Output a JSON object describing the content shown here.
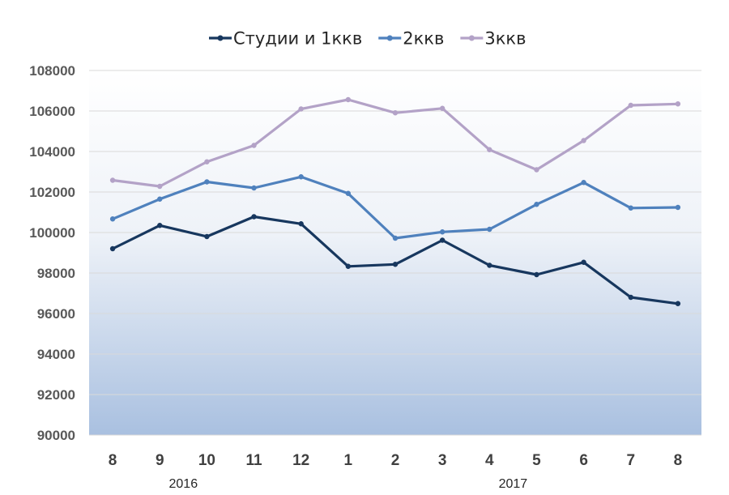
{
  "chart_data": {
    "type": "line",
    "categories": [
      "8",
      "9",
      "10",
      "11",
      "12",
      "1",
      "2",
      "3",
      "4",
      "5",
      "6",
      "7",
      "8"
    ],
    "year_labels": [
      {
        "label": "2016",
        "category_index": 1.5
      },
      {
        "label": "2017",
        "category_index": 8.5
      }
    ],
    "ylim": [
      90000,
      108000
    ],
    "yticks": [
      90000,
      92000,
      94000,
      96000,
      98000,
      100000,
      102000,
      104000,
      106000,
      108000
    ],
    "grid": true,
    "legend_position": "top",
    "series": [
      {
        "name": "Студии и 1ккв",
        "color": "#17375e",
        "values": [
          99200,
          100350,
          99800,
          100780,
          100430,
          98330,
          98430,
          99620,
          98380,
          97920,
          98530,
          96800,
          96490
        ]
      },
      {
        "name": "2ккв",
        "color": "#4f81bd",
        "values": [
          100670,
          101650,
          102500,
          102200,
          102750,
          101930,
          99720,
          100030,
          100160,
          101390,
          102470,
          101210,
          101240
        ]
      },
      {
        "name": "3ккв",
        "color": "#b3a2c7",
        "values": [
          102580,
          102280,
          103490,
          104300,
          106100,
          106560,
          105910,
          106130,
          104090,
          103100,
          104540,
          106280,
          106350
        ]
      }
    ]
  }
}
